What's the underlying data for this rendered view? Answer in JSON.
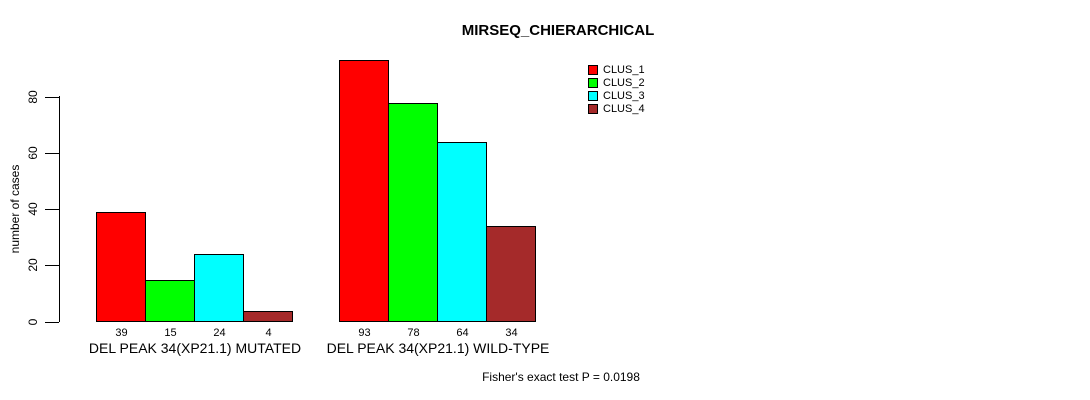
{
  "chart_data": {
    "type": "bar",
    "title": "MIRSEQ_CHIERARCHICAL",
    "ylabel": "number of cases",
    "xlabel": "",
    "groups": [
      "DEL PEAK 34(XP21.1) MUTATED",
      "DEL PEAK 34(XP21.1) WILD-TYPE"
    ],
    "series": [
      {
        "name": "CLUS_1",
        "color": "#FF0000",
        "values": [
          39,
          93
        ]
      },
      {
        "name": "CLUS_2",
        "color": "#00FF00",
        "values": [
          15,
          78
        ]
      },
      {
        "name": "CLUS_3",
        "color": "#00FFFF",
        "values": [
          24,
          64
        ]
      },
      {
        "name": "CLUS_4",
        "color": "#A52A2A",
        "values": [
          4,
          34
        ]
      }
    ],
    "bar_value_labels": [
      [
        "39",
        "15",
        "24",
        "4"
      ],
      [
        "93",
        "78",
        "64",
        "34"
      ]
    ],
    "yticks": [
      "0",
      "20",
      "40",
      "60",
      "80"
    ],
    "ytick_values": [
      0,
      20,
      40,
      60,
      80
    ],
    "ylim": [
      0,
      93
    ],
    "grid": false,
    "legend_position": "top-right",
    "legend_entries": [
      "CLUS_1",
      "CLUS_2",
      "CLUS_3",
      "CLUS_4"
    ],
    "annotation": "Fisher's exact test P = 0.0198",
    "axis_color": "#000000",
    "background_color": "#FFFFFF"
  }
}
